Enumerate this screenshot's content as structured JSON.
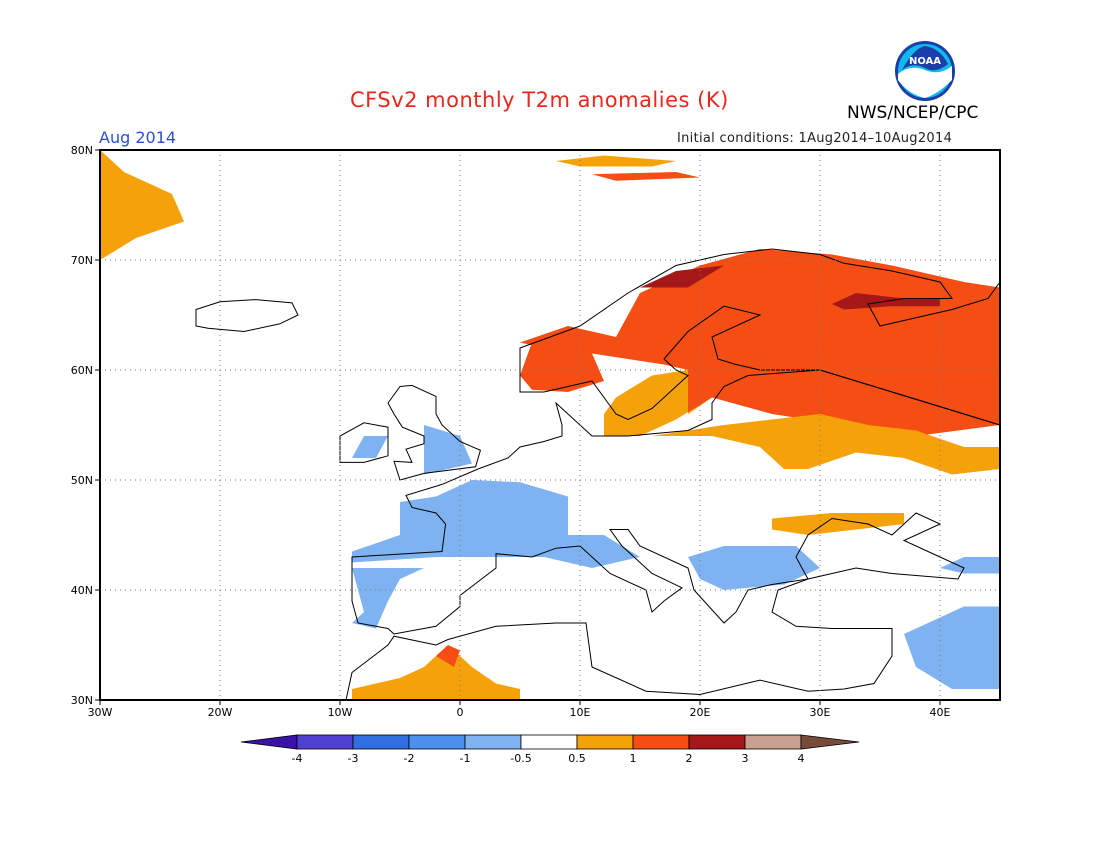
{
  "title": "CFSv2 monthly T2m anomalies (K)",
  "organization": "NWS/NCEP/CPC",
  "logo_text": "NOAA",
  "period_label": "Aug 2014",
  "initial_conditions": "Initial conditions: 1Aug2014–10Aug2014",
  "map": {
    "lon_range": [
      -30,
      45
    ],
    "lat_range": [
      30,
      80
    ],
    "lon_ticks": [
      {
        "v": -30,
        "label": "30W"
      },
      {
        "v": -20,
        "label": "20W"
      },
      {
        "v": -10,
        "label": "10W"
      },
      {
        "v": 0,
        "label": "0"
      },
      {
        "v": 10,
        "label": "10E"
      },
      {
        "v": 20,
        "label": "20E"
      },
      {
        "v": 30,
        "label": "30E"
      },
      {
        "v": 40,
        "label": "40E"
      }
    ],
    "lat_ticks": [
      {
        "v": 30,
        "label": "30N"
      },
      {
        "v": 40,
        "label": "40N"
      },
      {
        "v": 50,
        "label": "50N"
      },
      {
        "v": 60,
        "label": "60N"
      },
      {
        "v": 70,
        "label": "70N"
      },
      {
        "v": 80,
        "label": "80N"
      }
    ],
    "grid": "dotted"
  },
  "colorbar": {
    "labels": [
      "-4",
      "-3",
      "-2",
      "-1",
      "-0.5",
      "0.5",
      "1",
      "2",
      "3",
      "4"
    ],
    "colors": [
      "#3a12a8",
      "#5040d0",
      "#2f6fe0",
      "#4a90ec",
      "#7fb2f0",
      "#ffffff",
      "#f5a10a",
      "#f54e14",
      "#a41818",
      "#c9a090",
      "#7a4a38"
    ]
  },
  "anomaly_regions": [
    {
      "name": "norway-sweden-finland-warm",
      "level": "1",
      "color": "#f54e14",
      "lonlat": [
        [
          13,
          63
        ],
        [
          15,
          67
        ],
        [
          20,
          69.5
        ],
        [
          25,
          71
        ],
        [
          31,
          70.5
        ],
        [
          36,
          69.5
        ],
        [
          42,
          68
        ],
        [
          45,
          67.5
        ],
        [
          45,
          55
        ],
        [
          38,
          54
        ],
        [
          32,
          55
        ],
        [
          26,
          56
        ],
        [
          21,
          57.5
        ],
        [
          19,
          56
        ],
        [
          19,
          60
        ],
        [
          17,
          60.5
        ],
        [
          14,
          61
        ],
        [
          11,
          61.5
        ],
        [
          7,
          62
        ],
        [
          5,
          62.5
        ],
        [
          9,
          64
        ]
      ]
    },
    {
      "name": "west-norway-coast-warm",
      "level": "1",
      "color": "#f54e14",
      "lonlat": [
        [
          5,
          59.5
        ],
        [
          6,
          62.5
        ],
        [
          11,
          61.5
        ],
        [
          12,
          59
        ],
        [
          9,
          58
        ],
        [
          6,
          58.2
        ]
      ]
    },
    {
      "name": "baltic-orange",
      "level": "0.5",
      "color": "#f5a10a",
      "lonlat": [
        [
          12,
          54
        ],
        [
          12,
          56
        ],
        [
          13,
          57.5
        ],
        [
          16,
          59.5
        ],
        [
          19,
          60
        ],
        [
          19,
          56
        ],
        [
          21,
          57.5
        ],
        [
          18,
          55.5
        ],
        [
          15,
          54
        ]
      ]
    },
    {
      "name": "central-russia-orange",
      "level": "0.5",
      "color": "#f5a10a",
      "lonlat": [
        [
          16,
          54
        ],
        [
          22,
          55
        ],
        [
          26,
          55.5
        ],
        [
          30,
          56
        ],
        [
          34,
          55
        ],
        [
          38,
          54.5
        ],
        [
          42,
          53
        ],
        [
          45,
          53
        ],
        [
          45,
          51
        ],
        [
          41,
          50.5
        ],
        [
          37,
          52
        ],
        [
          33,
          52.5
        ],
        [
          29,
          51
        ],
        [
          27,
          51
        ],
        [
          25,
          53
        ],
        [
          21,
          54
        ],
        [
          16,
          54
        ]
      ]
    },
    {
      "name": "ukraine-orange",
      "level": "0.5",
      "color": "#f5a10a",
      "lonlat": [
        [
          26,
          46.5
        ],
        [
          31,
          47
        ],
        [
          37,
          47
        ],
        [
          37,
          46
        ],
        [
          33,
          45.5
        ],
        [
          29,
          45
        ],
        [
          26,
          45.5
        ]
      ]
    },
    {
      "name": "kola-dark-red",
      "level": "2",
      "color": "#a41818",
      "lonlat": [
        [
          31,
          66
        ],
        [
          33,
          67
        ],
        [
          37,
          66.5
        ],
        [
          40,
          66.5
        ],
        [
          40,
          65.8
        ],
        [
          36,
          65.8
        ],
        [
          32,
          65.5
        ]
      ]
    },
    {
      "name": "lofoten-dark-red",
      "level": "2",
      "color": "#a41818",
      "lonlat": [
        [
          15,
          67.5
        ],
        [
          18,
          69
        ],
        [
          22,
          69.5
        ],
        [
          19,
          67.5
        ]
      ]
    },
    {
      "name": "greenland-orange",
      "level": "0.5",
      "color": "#f5a10a",
      "lonlat": [
        [
          -30,
          80
        ],
        [
          -28,
          78
        ],
        [
          -24,
          76
        ],
        [
          -23,
          73.5
        ],
        [
          -27,
          72
        ],
        [
          -30,
          70
        ]
      ]
    },
    {
      "name": "svalbard-orange",
      "level": "0.5",
      "color": "#f5a10a",
      "lonlat": [
        [
          8,
          79
        ],
        [
          12,
          79.5
        ],
        [
          18,
          79
        ],
        [
          16,
          78.5
        ],
        [
          10,
          78.5
        ]
      ]
    },
    {
      "name": "svalbard-red",
      "level": "1",
      "color": "#f54e14",
      "lonlat": [
        [
          11,
          77.8
        ],
        [
          18,
          78
        ],
        [
          20,
          77.5
        ],
        [
          13,
          77.2
        ]
      ]
    },
    {
      "name": "britain-cold",
      "level": "-1",
      "color": "#7fb2f0",
      "lonlat": [
        [
          -3,
          50.5
        ],
        [
          -3,
          55
        ],
        [
          0,
          54
        ],
        [
          1,
          51.5
        ]
      ]
    },
    {
      "name": "ireland-cold",
      "level": "-1",
      "color": "#7fb2f0",
      "lonlat": [
        [
          -9,
          52
        ],
        [
          -8,
          54
        ],
        [
          -6,
          54
        ],
        [
          -7,
          52
        ]
      ]
    },
    {
      "name": "france-cold",
      "level": "-1",
      "color": "#7fb2f0",
      "lonlat": [
        [
          -5,
          48
        ],
        [
          -2,
          48.5
        ],
        [
          1,
          50
        ],
        [
          5,
          49.8
        ],
        [
          9,
          48.5
        ],
        [
          9,
          45
        ],
        [
          12,
          45
        ],
        [
          15,
          43
        ],
        [
          11,
          42
        ],
        [
          7,
          43
        ],
        [
          3,
          43
        ],
        [
          -2,
          43
        ],
        [
          -9,
          42.5
        ],
        [
          -9,
          43.5
        ],
        [
          -5,
          45
        ]
      ]
    },
    {
      "name": "iberia-cold",
      "level": "-1",
      "color": "#7fb2f0",
      "lonlat": [
        [
          -9,
          42
        ],
        [
          -8,
          38
        ],
        [
          -9,
          37
        ],
        [
          -7,
          36.5
        ],
        [
          -6,
          39
        ],
        [
          -5,
          41
        ],
        [
          -3,
          42
        ]
      ]
    },
    {
      "name": "balkans-cold",
      "level": "-1",
      "color": "#7fb2f0",
      "lonlat": [
        [
          19,
          43
        ],
        [
          22,
          44
        ],
        [
          28,
          44
        ],
        [
          30,
          42
        ],
        [
          27,
          40.5
        ],
        [
          22,
          40
        ],
        [
          20,
          41
        ]
      ]
    },
    {
      "name": "anatolia-cold",
      "level": "-1",
      "color": "#7fb2f0",
      "lonlat": [
        [
          39,
          37
        ],
        [
          42,
          38.5
        ],
        [
          45,
          38.5
        ],
        [
          45,
          31
        ],
        [
          41,
          31
        ],
        [
          38,
          33
        ],
        [
          37,
          36
        ]
      ]
    },
    {
      "name": "caucasus-cold",
      "level": "-1",
      "color": "#7fb2f0",
      "lonlat": [
        [
          40,
          42
        ],
        [
          42,
          43
        ],
        [
          45,
          43
        ],
        [
          45,
          41.5
        ],
        [
          42,
          41.5
        ]
      ]
    },
    {
      "name": "n-africa-orange",
      "level": "0.5",
      "color": "#f5a10a",
      "lonlat": [
        [
          -9,
          31
        ],
        [
          -5,
          32
        ],
        [
          -3,
          33
        ],
        [
          -1,
          35
        ],
        [
          1,
          33
        ],
        [
          3,
          31.5
        ],
        [
          5,
          31
        ],
        [
          5,
          30
        ],
        [
          -9,
          30
        ]
      ]
    },
    {
      "name": "n-africa-red",
      "level": "1",
      "color": "#f54e14",
      "lonlat": [
        [
          -2,
          34
        ],
        [
          -1,
          35
        ],
        [
          0,
          34.5
        ],
        [
          -0.5,
          33
        ]
      ]
    }
  ],
  "land_outlines": {
    "iceland": [
      [
        -22,
        64
      ],
      [
        -22,
        65.5
      ],
      [
        -20,
        66.2
      ],
      [
        -17,
        66.4
      ],
      [
        -14,
        66.1
      ],
      [
        -13.5,
        65
      ],
      [
        -15,
        64.2
      ],
      [
        -18,
        63.5
      ],
      [
        -21,
        63.8
      ]
    ],
    "britain": [
      [
        -5,
        50
      ],
      [
        -3,
        50.6
      ],
      [
        1.3,
        51.2
      ],
      [
        1.7,
        52.7
      ],
      [
        0,
        53.5
      ],
      [
        -1.5,
        55
      ],
      [
        -2,
        56
      ],
      [
        -2,
        57.6
      ],
      [
        -4,
        58.6
      ],
      [
        -5,
        58.5
      ],
      [
        -6,
        57
      ],
      [
        -5.5,
        56
      ],
      [
        -4.8,
        54.8
      ],
      [
        -3,
        54
      ],
      [
        -3,
        53.3
      ],
      [
        -4.5,
        52.8
      ],
      [
        -4,
        51.6
      ],
      [
        -5.5,
        51.7
      ]
    ],
    "ireland": [
      [
        -10,
        51.6
      ],
      [
        -10,
        54
      ],
      [
        -8,
        55.2
      ],
      [
        -6,
        54.8
      ],
      [
        -6,
        52.2
      ],
      [
        -8,
        51.6
      ]
    ],
    "scandinavia": [
      [
        5,
        58
      ],
      [
        5,
        62
      ],
      [
        10,
        64
      ],
      [
        14,
        67
      ],
      [
        18,
        69.5
      ],
      [
        22,
        70.5
      ],
      [
        26,
        71
      ],
      [
        30,
        70.5
      ],
      [
        32,
        69.7
      ],
      [
        36,
        69
      ],
      [
        40,
        68
      ],
      [
        41,
        66.5
      ],
      [
        37,
        66.5
      ],
      [
        34,
        66
      ],
      [
        35,
        64
      ],
      [
        37,
        64.5
      ],
      [
        41,
        65.5
      ],
      [
        44,
        66.5
      ],
      [
        45,
        68
      ],
      [
        45,
        55
      ],
      [
        30,
        60
      ],
      [
        25,
        60
      ],
      [
        23,
        60.5
      ],
      [
        21.5,
        61
      ],
      [
        21,
        63
      ],
      [
        25,
        65
      ],
      [
        22,
        65.8
      ],
      [
        19,
        63.5
      ],
      [
        17,
        61
      ],
      [
        18,
        60
      ],
      [
        19,
        59.5
      ],
      [
        16,
        56.5
      ],
      [
        14,
        55.5
      ],
      [
        13,
        56
      ],
      [
        12,
        57.5
      ],
      [
        11,
        59
      ],
      [
        9,
        58.5
      ],
      [
        7,
        58
      ]
    ],
    "continent": [
      [
        -9,
        43
      ],
      [
        -9,
        39
      ],
      [
        -8.5,
        37
      ],
      [
        -6,
        36.5
      ],
      [
        -5.5,
        36
      ],
      [
        -2,
        36.7
      ],
      [
        0,
        38.5
      ],
      [
        0,
        39.5
      ],
      [
        3,
        42
      ],
      [
        3,
        43.3
      ],
      [
        6,
        43
      ],
      [
        8,
        43.8
      ],
      [
        10,
        44
      ],
      [
        12.5,
        41.5
      ],
      [
        15.5,
        40
      ],
      [
        16,
        38
      ],
      [
        17,
        39
      ],
      [
        18.5,
        40.2
      ],
      [
        16,
        41.5
      ],
      [
        13.5,
        44
      ],
      [
        12.5,
        45.5
      ],
      [
        14,
        45.5
      ],
      [
        15,
        44
      ],
      [
        19,
        42
      ],
      [
        19.5,
        40
      ],
      [
        22,
        37
      ],
      [
        23,
        38
      ],
      [
        24,
        40
      ],
      [
        26,
        40.5
      ],
      [
        29,
        41
      ],
      [
        28,
        43
      ],
      [
        29,
        45
      ],
      [
        31,
        46.5
      ],
      [
        34,
        46
      ],
      [
        36,
        45
      ],
      [
        38,
        47
      ],
      [
        40,
        46
      ],
      [
        37,
        44.5
      ],
      [
        40,
        43
      ],
      [
        42,
        42
      ],
      [
        41.5,
        41
      ],
      [
        36,
        41.5
      ],
      [
        33,
        42
      ],
      [
        29,
        41
      ],
      [
        26.5,
        40
      ],
      [
        26,
        38
      ],
      [
        28,
        36.7
      ],
      [
        31,
        36.5
      ],
      [
        36,
        36.5
      ],
      [
        36,
        34
      ],
      [
        34.5,
        31.5
      ],
      [
        32,
        31
      ],
      [
        29,
        30.8
      ],
      [
        25,
        31.8
      ],
      [
        20,
        30.5
      ],
      [
        15.5,
        30.8
      ],
      [
        11,
        33
      ],
      [
        10.5,
        37
      ],
      [
        8,
        37
      ],
      [
        3,
        36.7
      ],
      [
        -1,
        35.5
      ],
      [
        -2,
        35
      ],
      [
        -5.5,
        35.8
      ],
      [
        -6,
        35
      ],
      [
        -9,
        32.5
      ],
      [
        -9.5,
        30
      ],
      [
        45,
        30
      ],
      [
        45,
        55
      ],
      [
        30,
        60
      ],
      [
        24,
        59.5
      ],
      [
        22,
        58.5
      ],
      [
        21,
        57
      ],
      [
        21,
        55.5
      ],
      [
        19,
        54.5
      ],
      [
        14,
        54
      ],
      [
        11,
        54
      ],
      [
        10,
        55
      ],
      [
        8,
        57
      ],
      [
        8.5,
        55
      ],
      [
        8.5,
        54
      ],
      [
        7,
        53.5
      ],
      [
        5,
        53
      ],
      [
        4,
        52
      ],
      [
        1.5,
        51
      ],
      [
        -1.5,
        49.6
      ],
      [
        -4.5,
        48.6
      ],
      [
        -4,
        47.5
      ],
      [
        -2,
        47
      ],
      [
        -1.2,
        46
      ],
      [
        -1.5,
        43.5
      ]
    ]
  }
}
